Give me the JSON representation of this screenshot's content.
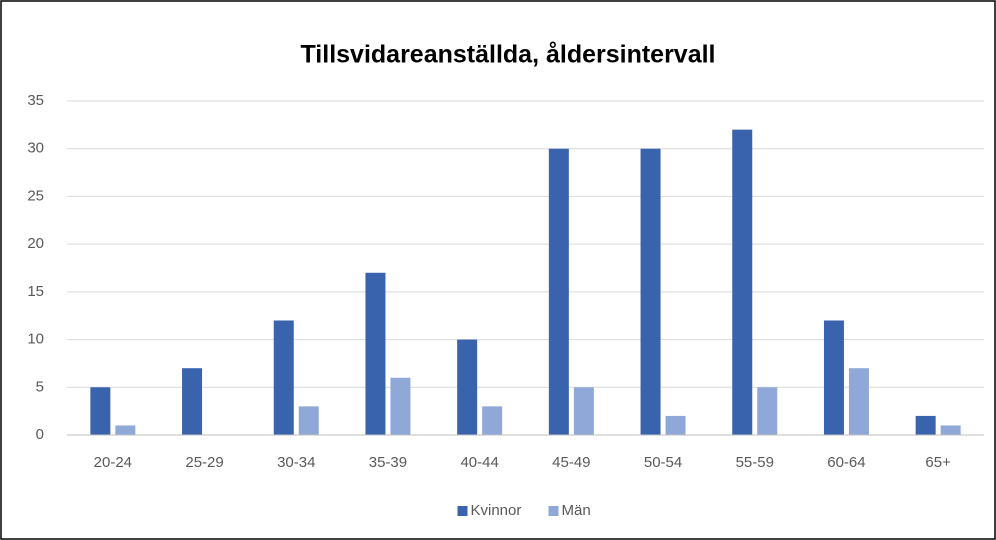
{
  "chart_data": {
    "type": "bar",
    "title": "Tillsvidareanställda, åldersintervall",
    "categories": [
      "20-24",
      "25-29",
      "30-34",
      "35-39",
      "40-44",
      "45-49",
      "50-54",
      "55-59",
      "60-64",
      "65+"
    ],
    "series": [
      {
        "name": "Kvinnor",
        "color": "#3a63ae",
        "values": [
          5,
          7,
          12,
          17,
          10,
          30,
          30,
          32,
          12,
          2
        ]
      },
      {
        "name": "Män",
        "color": "#8fa8d8",
        "values": [
          1,
          0,
          3,
          6,
          3,
          5,
          2,
          5,
          7,
          1
        ]
      }
    ],
    "ylim": [
      0,
      35
    ],
    "yticks": [
      0,
      5,
      10,
      15,
      20,
      25,
      30,
      35
    ],
    "grid": true,
    "legend": "bottom"
  }
}
